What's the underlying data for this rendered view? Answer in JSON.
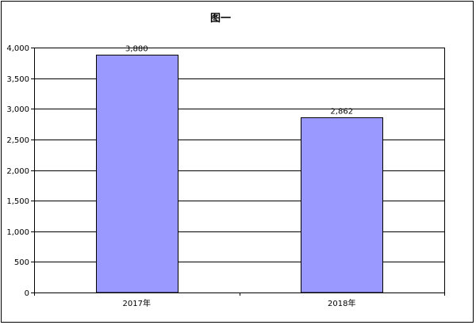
{
  "chart_data": {
    "type": "bar",
    "title": "图一",
    "categories": [
      "2017年",
      "2018年"
    ],
    "values": [
      3880,
      2862
    ],
    "data_labels": [
      "3,880",
      "2,862"
    ],
    "ylim": [
      0,
      4000
    ],
    "yticks": [
      "0",
      "500",
      "1,000",
      "1,500",
      "2,000",
      "2,500",
      "3,000",
      "3,500",
      "4,000"
    ],
    "ytick_values": [
      0,
      500,
      1000,
      1500,
      2000,
      2500,
      3000,
      3500,
      4000
    ],
    "xlabel": "",
    "ylabel": "",
    "grid": true,
    "bar_color": "#9999ff",
    "bar_edge_color": "#000000"
  }
}
